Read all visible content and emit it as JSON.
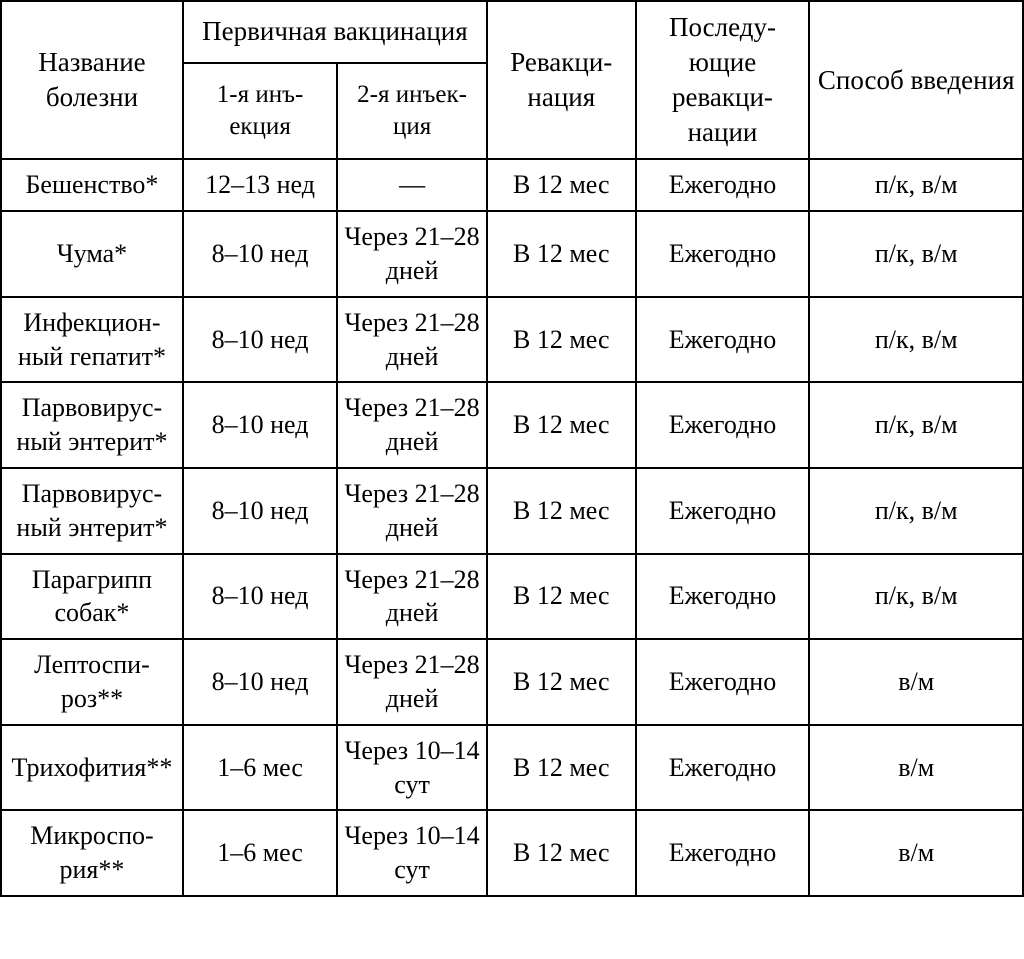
{
  "table": {
    "header": {
      "disease": "Название болезни",
      "primary": "Первичная вакцинация",
      "inj1": "1-я инъ-екция",
      "inj2": "2-я инъек-ция",
      "revacc": "Ревакци-нация",
      "subsequent": "Последу-ющие ревакци-нации",
      "method": "Способ введения"
    },
    "rows": [
      {
        "disease": "Бешенство*",
        "inj1": "12–13 нед",
        "inj2": "—",
        "revacc": "В 12 мес",
        "subsequent": "Ежегодно",
        "method": "п/к, в/м"
      },
      {
        "disease": "Чума*",
        "inj1": "8–10 нед",
        "inj2": "Через 21–28 дней",
        "revacc": "В 12 мес",
        "subsequent": "Ежегодно",
        "method": "п/к, в/м"
      },
      {
        "disease": "Инфекцион-ный гепатит*",
        "inj1": "8–10 нед",
        "inj2": "Через 21–28 дней",
        "revacc": "В 12 мес",
        "subsequent": "Ежегодно",
        "method": "п/к, в/м"
      },
      {
        "disease": "Парвовирус-ный энтерит*",
        "inj1": "8–10 нед",
        "inj2": "Через 21–28 дней",
        "revacc": "В 12 мес",
        "subsequent": "Ежегодно",
        "method": "п/к, в/м"
      },
      {
        "disease": "Парвовирус-ный энтерит*",
        "inj1": "8–10 нед",
        "inj2": "Через 21–28 дней",
        "revacc": "В 12 мес",
        "subsequent": "Ежегодно",
        "method": "п/к, в/м"
      },
      {
        "disease": "Парагрипп собак*",
        "inj1": "8–10 нед",
        "inj2": "Через 21–28 дней",
        "revacc": "В 12 мес",
        "subsequent": "Ежегодно",
        "method": "п/к, в/м"
      },
      {
        "disease": "Лептоспи-роз**",
        "inj1": "8–10 нед",
        "inj2": "Через 21–28 дней",
        "revacc": "В 12 мес",
        "subsequent": "Ежегодно",
        "method": "в/м"
      },
      {
        "disease": "Трихофития**",
        "inj1": "1–6 мес",
        "inj2": "Через 10–14 сут",
        "revacc": "В 12 мес",
        "subsequent": "Ежегодно",
        "method": "в/м"
      },
      {
        "disease": "Микроспо-рия**",
        "inj1": "1–6 мес",
        "inj2": "Через 10–14 сут",
        "revacc": "В 12 мес",
        "subsequent": "Ежегодно",
        "method": "в/м"
      }
    ],
    "styling": {
      "background_color": "#ffffff",
      "border_color": "#000000",
      "text_color": "#000000",
      "font_family": "Times New Roman serif",
      "header_fontsize": 27,
      "subheader_fontsize": 25,
      "cell_fontsize": 26,
      "border_width": 2,
      "column_widths_pct": [
        17.8,
        15.1,
        14.65,
        14.55,
        17.0,
        20.9
      ]
    }
  }
}
